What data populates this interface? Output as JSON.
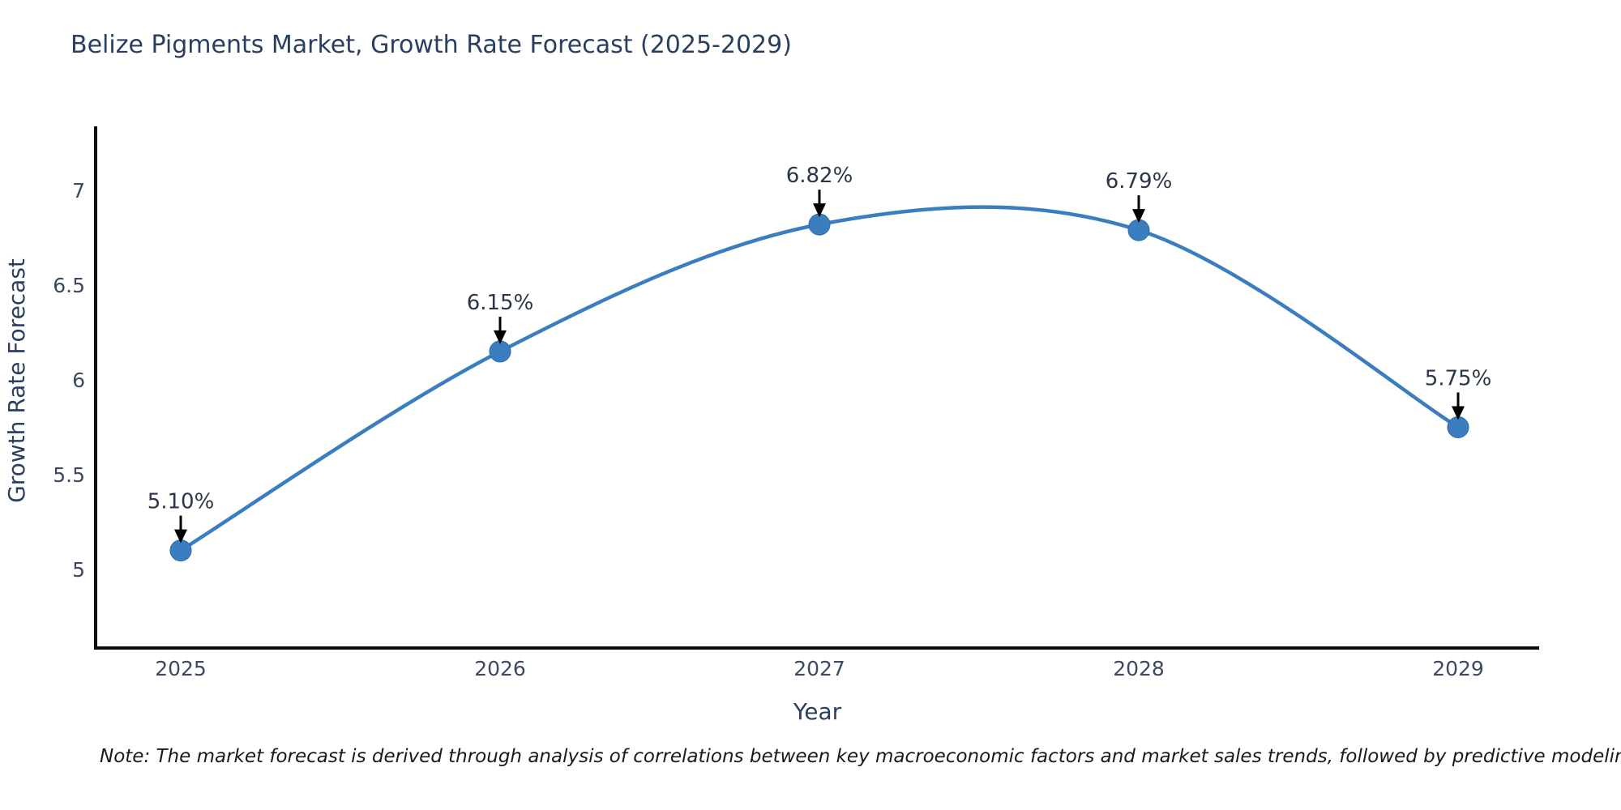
{
  "footnote": "Note: The market forecast is derived through analysis of correlations between key macroeconomic factors and market sales trends, followed by predictive modeling to project future sales",
  "chart_data": {
    "type": "line",
    "title": "Belize Pigments Market, Growth Rate Forecast (2025-2029)",
    "xlabel": "Year",
    "ylabel": "Growth Rate Forecast",
    "x": [
      2025,
      2026,
      2027,
      2028,
      2029
    ],
    "values": [
      5.1,
      6.15,
      6.82,
      6.79,
      5.75
    ],
    "point_labels": [
      "5.10%",
      "6.15%",
      "6.82%",
      "6.79%",
      "5.75%"
    ],
    "xtick_labels": [
      "2025",
      "2026",
      "2027",
      "2028",
      "2029"
    ],
    "ytick_values": [
      5,
      5.5,
      6,
      6.5,
      7
    ],
    "ytick_labels": [
      "5",
      "5.5",
      "6",
      "6.5",
      "7"
    ],
    "ylim": [
      4.58,
      7.33
    ],
    "xlim": [
      2024.73,
      2029.26
    ],
    "line_shape": "spline",
    "grid": false,
    "legend": false,
    "colors": {
      "line": "#3a7ebf",
      "marker": "#3a7ebf",
      "marker_edge": "#2f6ba6",
      "title": "#2a3f5f",
      "axis_label": "#2a3f5f",
      "tick_label": "#3c4961",
      "axis_line": "#0d0d0d",
      "annotation_text": "#2b3648",
      "annotation_arrow": "#000000",
      "note": "#1a1a1a",
      "background": "#ffffff"
    }
  }
}
